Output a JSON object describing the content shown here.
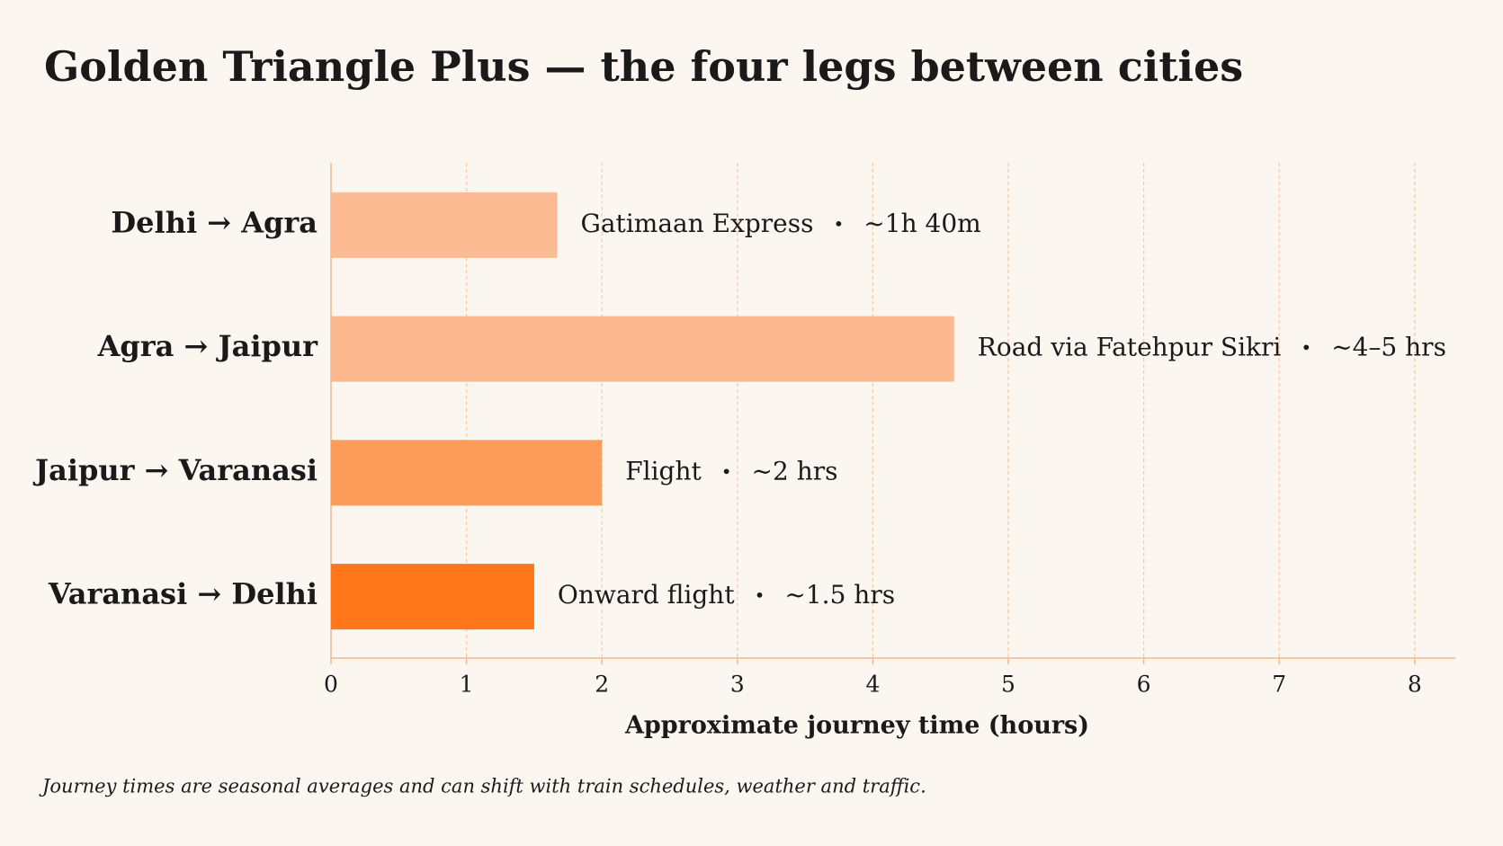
{
  "chart_data": {
    "type": "bar",
    "orientation": "horizontal",
    "title": "Golden Triangle Plus — the four legs between cities",
    "categories": [
      "Delhi → Agra",
      "Agra → Jaipur",
      "Jaipur → Varanasi",
      "Varanasi → Delhi"
    ],
    "values": [
      1.67,
      4.6,
      2,
      1.5
    ],
    "colors": [
      "#fcbb93",
      "#fcb98f",
      "#fd9c5a",
      "#fe7619"
    ],
    "annotations": [
      {
        "mode": "Gatimaan Express",
        "time": "~1h 40m"
      },
      {
        "mode": "Road via Fatehpur Sikri",
        "time": "~4–5 hrs"
      },
      {
        "mode": "Flight",
        "time": "~2 hrs"
      },
      {
        "mode": "Onward flight",
        "time": "~1.5 hrs"
      }
    ],
    "separator": "•",
    "xlim": [
      0,
      8.3
    ],
    "xticks": [
      0,
      1,
      2,
      3,
      4,
      5,
      6,
      7,
      8
    ],
    "grid": true,
    "xlabel": "Approximate journey time (hours)",
    "footnote": "Journey times are seasonal averages and can shift with train schedules, weather and traffic."
  }
}
